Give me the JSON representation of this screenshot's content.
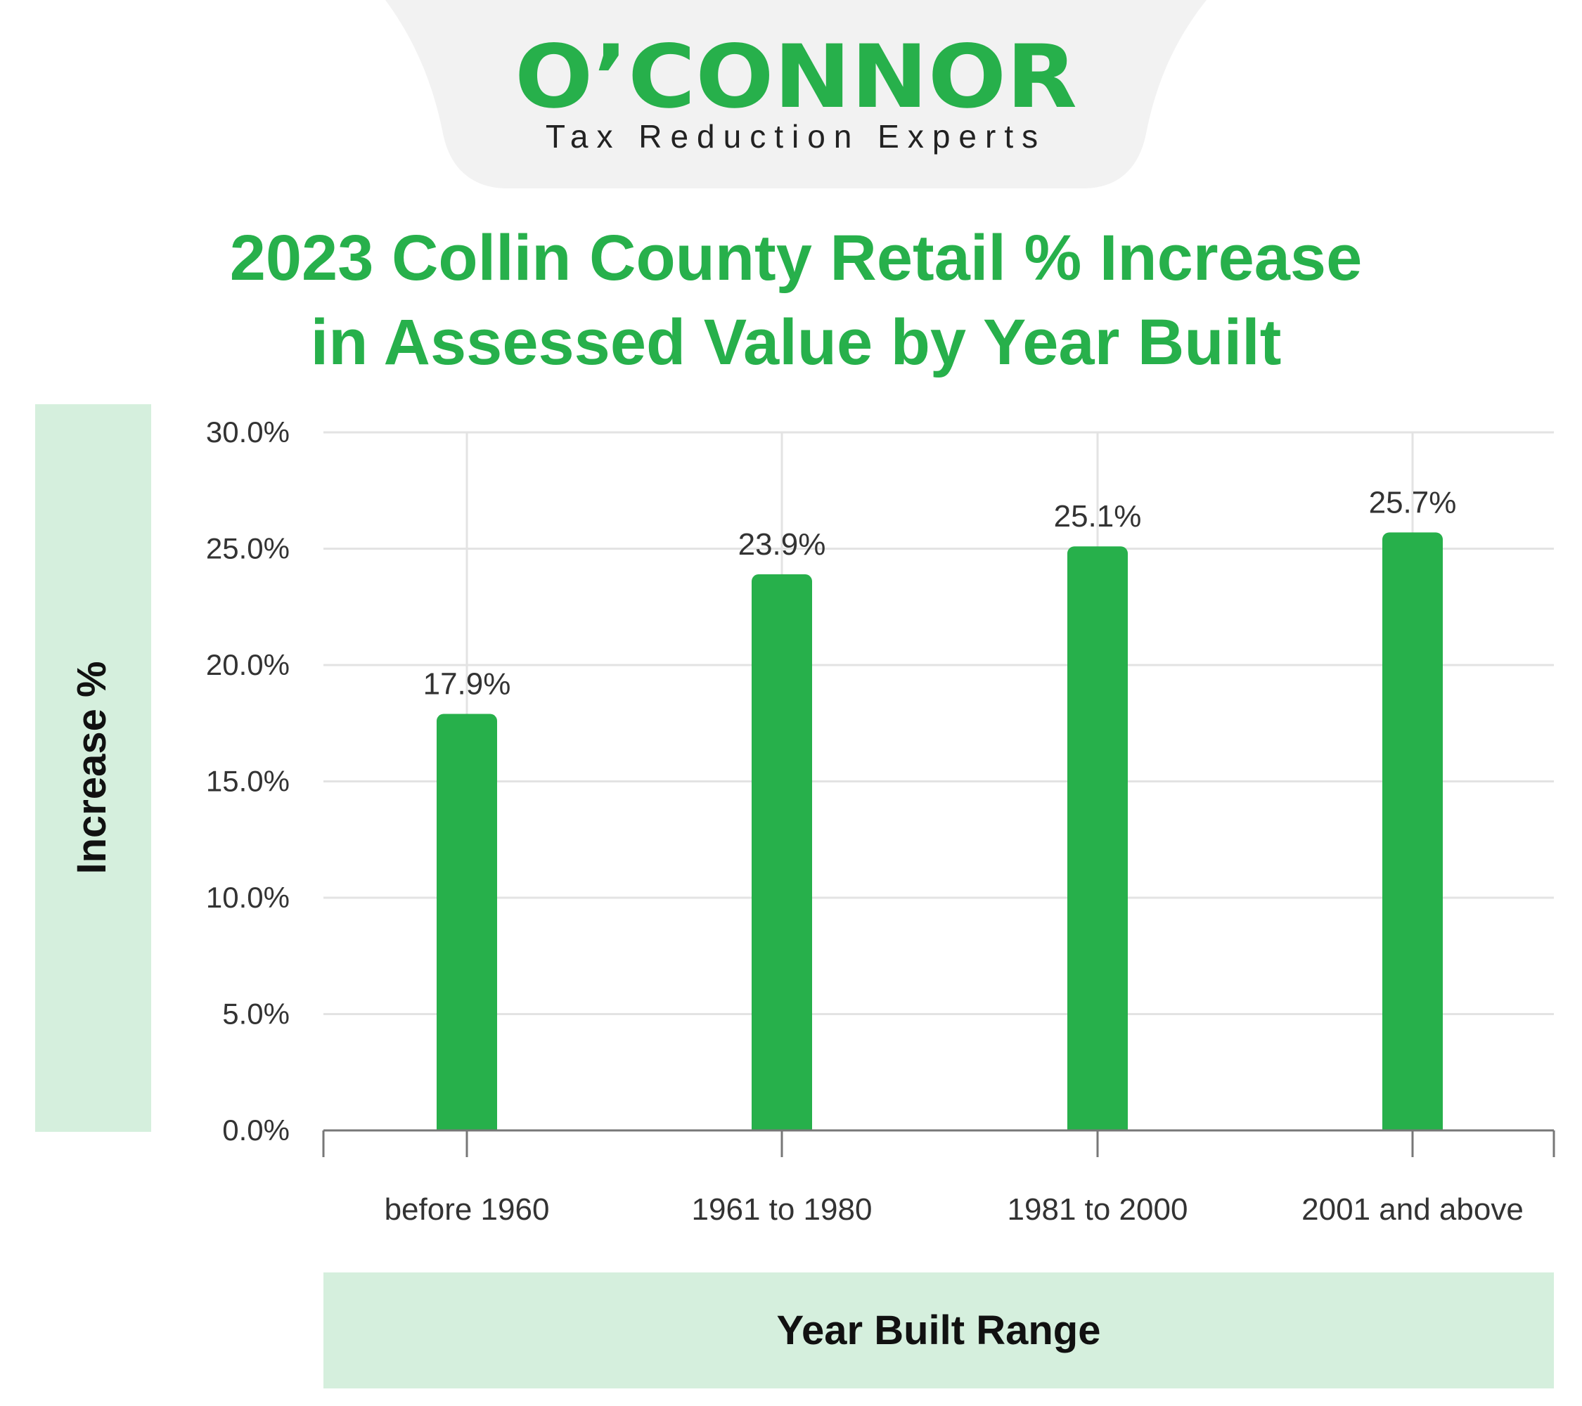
{
  "brand": {
    "name": "O’CONNOR",
    "tagline": "Tax Reduction Experts",
    "color": "#27b04b"
  },
  "chart_data": {
    "type": "bar",
    "title": "2023 Collin County Retail % Increase in Assessed Value by Year Built",
    "title_lines": [
      "2023 Collin County Retail % Increase",
      "in Assessed Value by Year Built"
    ],
    "categories": [
      "before 1960",
      "1961 to 1980",
      "1981 to 2000",
      "2001 and above"
    ],
    "values": [
      17.9,
      23.9,
      25.1,
      25.7
    ],
    "value_labels": [
      "17.9%",
      "23.9%",
      "25.1%",
      "25.7%"
    ],
    "xlabel": "Year Built Range",
    "ylabel": "Increase %",
    "ylim": [
      0,
      30
    ],
    "yticks": [
      0,
      5,
      10,
      15,
      20,
      25,
      30
    ],
    "ytick_labels": [
      "0.0%",
      "5.0%",
      "10.0%",
      "15.0%",
      "20.0%",
      "25.0%",
      "30.0%"
    ],
    "grid": true,
    "bar_color": "#27b04b",
    "title_color": "#27b04b",
    "axis_panel_color": "#d5efdd"
  }
}
